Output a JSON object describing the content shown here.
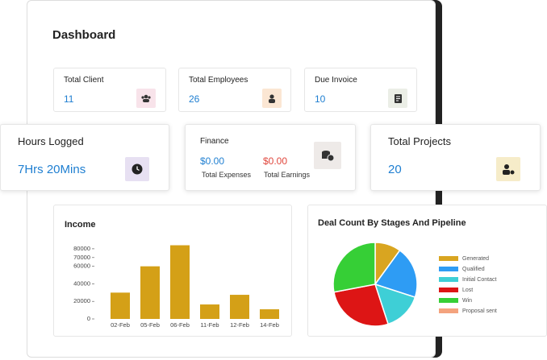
{
  "header": {
    "title": "Dashboard"
  },
  "stats": [
    {
      "label": "Total Client",
      "value": 11
    },
    {
      "label": "Total Employees",
      "value": 26
    },
    {
      "label": "Due Invoice",
      "value": 10
    }
  ],
  "hours": {
    "label": "Hours Logged",
    "value": "7Hrs 20Mins"
  },
  "finance": {
    "label": "Finance",
    "expenses": "$0.00",
    "expenses_label": "Total Expenses",
    "earnings": "$0.00",
    "earnings_label": "Total Earnings"
  },
  "projects": {
    "label": "Total Projects",
    "value": 20
  },
  "income": {
    "type": "bar",
    "title": "Income",
    "categories": [
      "02-Feb",
      "05-Feb",
      "06-Feb",
      "11-Feb",
      "12-Feb",
      "14-Feb"
    ],
    "values": [
      30000,
      60000,
      84000,
      16500,
      27500,
      11000
    ],
    "color": "#d4a017",
    "ylim": [
      0,
      90000
    ],
    "yticks": [
      80000,
      70000,
      60000,
      40000,
      20000,
      0
    ]
  },
  "deals": {
    "type": "pie",
    "title": "Deal Count By Stages And Pipeline",
    "categories": [
      "Generated",
      "Qualified",
      "Initial Contact",
      "Lost",
      "Win",
      "Proposal sent"
    ],
    "values": [
      10,
      20,
      15,
      27,
      28,
      0
    ],
    "colors": [
      "#d9a520",
      "#2e9cf4",
      "#3ecfd6",
      "#dd1515",
      "#36cf36",
      "#f4a37e"
    ]
  }
}
